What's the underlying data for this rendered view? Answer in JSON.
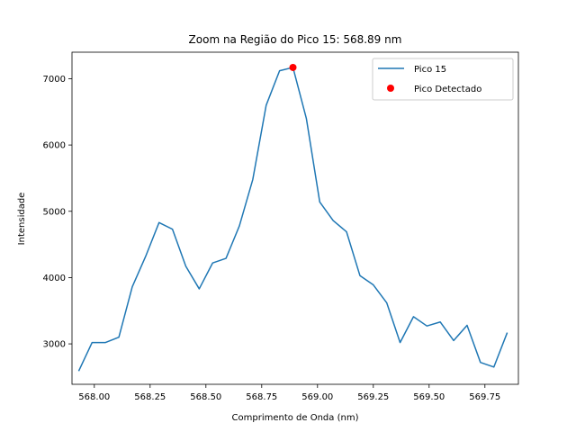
{
  "chart_data": {
    "type": "line",
    "title": "Zoom na Região do Pico 15: 568.89 nm",
    "xlabel": "Comprimento de Onda (nm)",
    "ylabel": "Intensidade",
    "xlim": [
      567.9,
      569.9
    ],
    "ylim": [
      2390,
      7400
    ],
    "x_ticks": [
      568.0,
      568.25,
      568.5,
      568.75,
      569.0,
      569.25,
      569.5,
      569.75
    ],
    "x_tick_labels": [
      "568.00",
      "568.25",
      "568.50",
      "568.75",
      "569.00",
      "569.25",
      "569.50",
      "569.75"
    ],
    "y_ticks": [
      3000,
      4000,
      5000,
      6000,
      7000
    ],
    "y_tick_labels": [
      "3000",
      "4000",
      "5000",
      "6000",
      "7000"
    ],
    "grid": false,
    "legend_position": "top-right",
    "series": [
      {
        "name": "Pico 15",
        "color": "#1f77b4",
        "x": [
          567.93,
          567.99,
          568.05,
          568.11,
          568.17,
          568.23,
          568.29,
          568.35,
          568.41,
          568.47,
          568.53,
          568.59,
          568.65,
          568.71,
          568.77,
          568.83,
          568.89,
          568.95,
          569.01,
          569.07,
          569.13,
          569.19,
          569.25,
          569.31,
          569.37,
          569.43,
          569.49,
          569.55,
          569.61,
          569.67,
          569.73,
          569.79,
          569.85
        ],
        "y": [
          2590,
          3020,
          3020,
          3100,
          3860,
          4320,
          4830,
          4730,
          4170,
          3830,
          4220,
          4290,
          4780,
          5480,
          6600,
          7120,
          7170,
          6400,
          5140,
          4860,
          4690,
          4030,
          3890,
          3620,
          3020,
          3410,
          3270,
          3330,
          3050,
          3280,
          2720,
          2650,
          3170
        ]
      }
    ],
    "markers": [
      {
        "name": "Pico Detectado",
        "color": "#ff0000",
        "x": 568.89,
        "y": 7170
      }
    ]
  }
}
